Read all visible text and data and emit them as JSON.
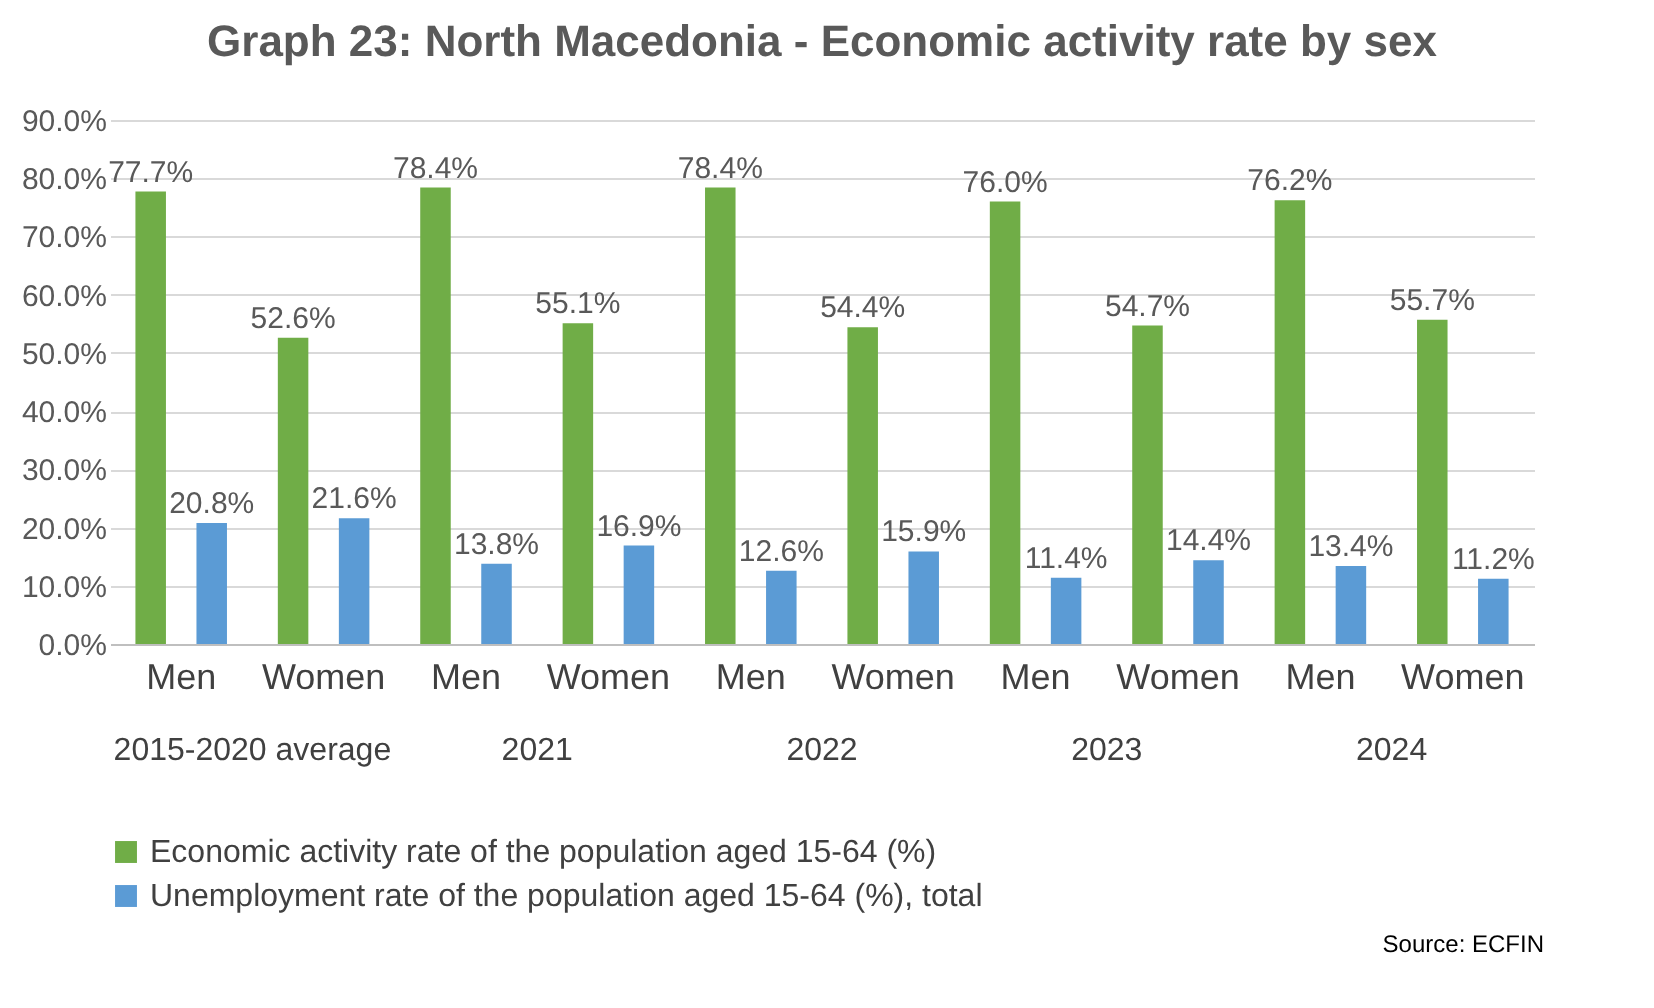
{
  "chart_data": {
    "type": "bar",
    "title": "Graph 23: North Macedonia - Economic activity rate by sex",
    "categories": [
      "Men",
      "Women",
      "Men",
      "Women",
      "Men",
      "Women",
      "Men",
      "Women",
      "Men",
      "Women"
    ],
    "series": [
      {
        "name": "Economic activity rate of the population aged 15-64 (%)",
        "color": "#70ad47",
        "values": [
          77.7,
          52.6,
          78.4,
          55.1,
          78.4,
          54.4,
          76.0,
          54.7,
          76.2,
          55.7
        ],
        "value_labels": [
          "77.7%",
          "52.6%",
          "78.4%",
          "55.1%",
          "78.4%",
          "54.4%",
          "76.0%",
          "54.7%",
          "76.2%",
          "55.7%"
        ]
      },
      {
        "name": "Unemployment rate of the population aged 15-64 (%), total",
        "color": "#5b9bd5",
        "values": [
          20.8,
          21.6,
          13.8,
          16.9,
          12.6,
          15.9,
          11.4,
          14.4,
          13.4,
          11.2
        ],
        "value_labels": [
          "20.8%",
          "21.6%",
          "13.8%",
          "16.9%",
          "12.6%",
          "15.9%",
          "11.4%",
          "14.4%",
          "13.4%",
          "11.2%"
        ]
      }
    ],
    "ylim": [
      0,
      90
    ],
    "yticks": [
      {
        "value": 0,
        "label": "0.0%"
      },
      {
        "value": 10,
        "label": "10.0%"
      },
      {
        "value": 20,
        "label": "20.0%"
      },
      {
        "value": 30,
        "label": "30.0%"
      },
      {
        "value": 40,
        "label": "40.0%"
      },
      {
        "value": 50,
        "label": "50.0%"
      },
      {
        "value": 60,
        "label": "60.0%"
      },
      {
        "value": 70,
        "label": "70.0%"
      },
      {
        "value": 80,
        "label": "80.0%"
      },
      {
        "value": 90,
        "label": "90.0%"
      }
    ],
    "grid": "y",
    "legend": "bottom",
    "annotations": [
      "2015-2020 average",
      "2021",
      "2022",
      "2023",
      "2024",
      "Source: ECFIN"
    ]
  }
}
